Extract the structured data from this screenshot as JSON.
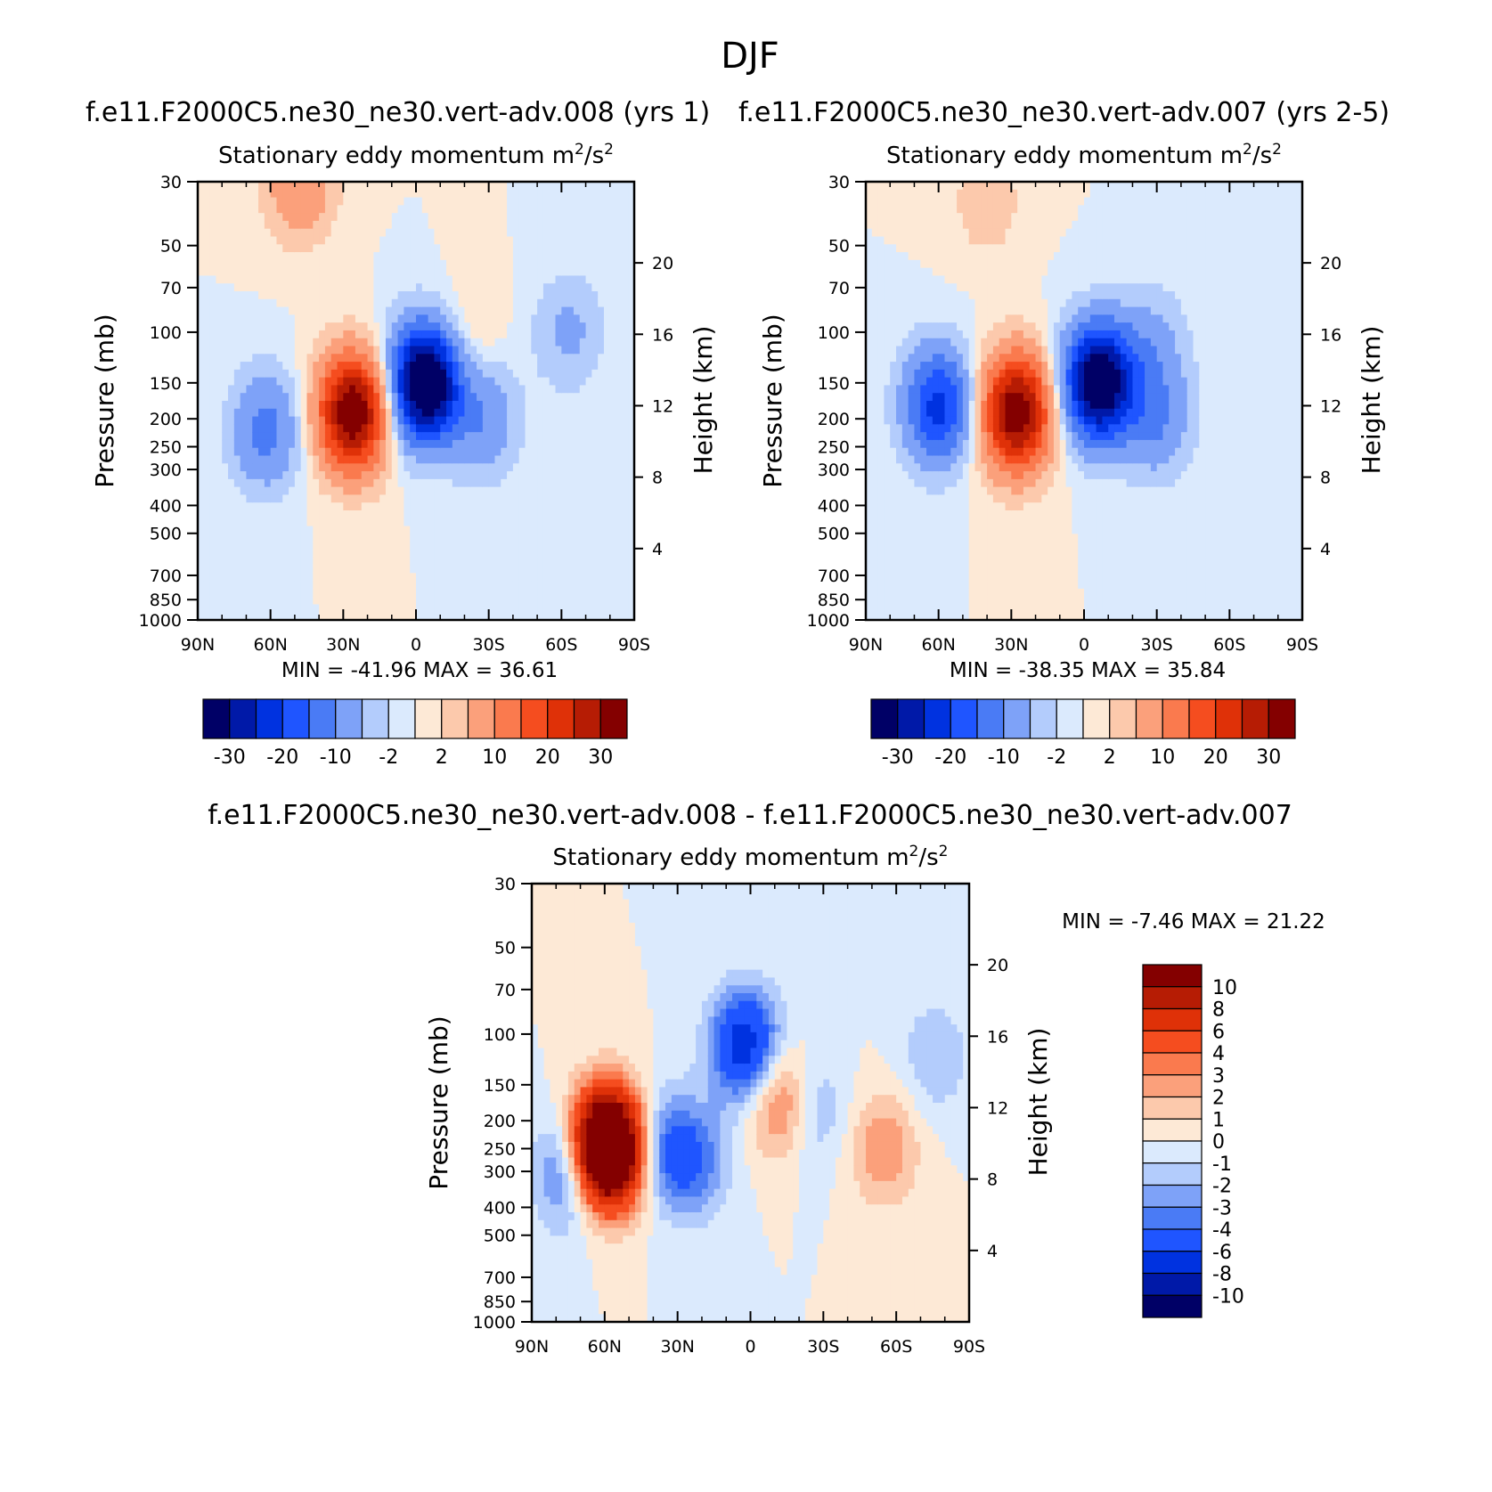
{
  "figure_title": "DJF",
  "chart_data": [
    {
      "type": "heatmap",
      "case_title": "f.e11.F2000C5.ne30_ne30.vert-adv.008 (yrs 1)",
      "title": "Stationary eddy momentum",
      "units_base": "m",
      "units_mid": "/s",
      "units_sup": "2",
      "ylabel": "Pressure (mb)",
      "y2label": "Height (km)",
      "x_ticks": [
        "90N",
        "60N",
        "30N",
        "0",
        "30S",
        "60S",
        "90S"
      ],
      "x_values": [
        90,
        60,
        30,
        0,
        -30,
        -60,
        -90
      ],
      "pressure_ticks": [
        30,
        50,
        70,
        100,
        150,
        200,
        250,
        300,
        400,
        500,
        700,
        850,
        1000
      ],
      "pressure_range": [
        30,
        1000
      ],
      "height_ticks": [
        20,
        16,
        12,
        8,
        4
      ],
      "min_text": "MIN = -41.96",
      "max_text": "MAX = 36.61",
      "min": -41.96,
      "max": 36.61,
      "levels": [
        -35,
        -30,
        -25,
        -20,
        -15,
        -10,
        -5,
        -2,
        0,
        2,
        5,
        10,
        15,
        20,
        25,
        30,
        35
      ],
      "colorbar_labels": [
        "-30",
        "-20",
        "-10",
        "-2",
        "2",
        "10",
        "20",
        "30"
      ],
      "features": [
        {
          "lat": 26,
          "p": 190,
          "value": 36.6
        },
        {
          "lat": -4,
          "p": 150,
          "value": -42
        },
        {
          "lat": 62,
          "p": 220,
          "value": -12
        },
        {
          "lat": 48,
          "p": 30,
          "value": 10
        },
        {
          "lat": -28,
          "p": 200,
          "value": -9
        },
        {
          "lat": -63,
          "p": 100,
          "value": -6
        },
        {
          "lat": -20,
          "p": 110,
          "value": 4
        }
      ]
    },
    {
      "type": "heatmap",
      "case_title": "f.e11.F2000C5.ne30_ne30.vert-adv.007 (yrs 2-5)",
      "title": "Stationary eddy momentum",
      "units_base": "m",
      "units_mid": "/s",
      "units_sup": "2",
      "ylabel": "Pressure (mb)",
      "y2label": "Height (km)",
      "x_ticks": [
        "90N",
        "60N",
        "30N",
        "0",
        "30S",
        "60S",
        "90S"
      ],
      "x_values": [
        90,
        60,
        30,
        0,
        -30,
        -60,
        -90
      ],
      "pressure_ticks": [
        30,
        50,
        70,
        100,
        150,
        200,
        250,
        300,
        400,
        500,
        700,
        850,
        1000
      ],
      "pressure_range": [
        30,
        1000
      ],
      "height_ticks": [
        20,
        16,
        12,
        8,
        4
      ],
      "min_text": "MIN = -38.35",
      "max_text": "MAX = 35.84",
      "min": -38.35,
      "max": 35.84,
      "levels": [
        -35,
        -30,
        -25,
        -20,
        -15,
        -10,
        -5,
        -2,
        0,
        2,
        5,
        10,
        15,
        20,
        25,
        30,
        35
      ],
      "colorbar_labels": [
        "-30",
        "-20",
        "-10",
        "-2",
        "2",
        "10",
        "20",
        "30"
      ],
      "features": [
        {
          "lat": 28,
          "p": 190,
          "value": 35.8
        },
        {
          "lat": -6,
          "p": 150,
          "value": -38.4
        },
        {
          "lat": 60,
          "p": 180,
          "value": -22
        },
        {
          "lat": -30,
          "p": 200,
          "value": -10
        },
        {
          "lat": -28,
          "p": 110,
          "value": -6
        },
        {
          "lat": 40,
          "p": 35,
          "value": 4
        }
      ]
    },
    {
      "type": "heatmap",
      "case_title": "f.e11.F2000C5.ne30_ne30.vert-adv.008 - f.e11.F2000C5.ne30_ne30.vert-adv.007",
      "title": "Stationary eddy momentum",
      "units_base": "m",
      "units_mid": "/s",
      "units_sup": "2",
      "ylabel": "Pressure (mb)",
      "y2label": "Height (km)",
      "x_ticks": [
        "90N",
        "60N",
        "30N",
        "0",
        "30S",
        "60S",
        "90S"
      ],
      "x_values": [
        90,
        60,
        30,
        0,
        -30,
        -60,
        -90
      ],
      "pressure_ticks": [
        30,
        50,
        70,
        100,
        150,
        200,
        250,
        300,
        400,
        500,
        700,
        850,
        1000
      ],
      "pressure_range": [
        30,
        1000
      ],
      "height_ticks": [
        20,
        16,
        12,
        8,
        4
      ],
      "min_text": "MIN = -7.46",
      "max_text": "MAX = 21.22",
      "min": -7.46,
      "max": 21.22,
      "levels": [
        -12,
        -10,
        -8,
        -6,
        -4,
        -3,
        -2,
        -1,
        0,
        1,
        2,
        3,
        4,
        6,
        8,
        10,
        12
      ],
      "colorbar_labels": [
        "10",
        "8",
        "6",
        "4",
        "3",
        "2",
        "1",
        "0",
        "-1",
        "-2",
        "-3",
        "-4",
        "-6",
        "-8",
        "-10"
      ],
      "features": [
        {
          "lat": 59,
          "p": 250,
          "value": 21.2
        },
        {
          "lat": 74,
          "p": 300,
          "value": -5
        },
        {
          "lat": 2,
          "p": 110,
          "value": -7.5
        },
        {
          "lat": -13,
          "p": 170,
          "value": 5
        },
        {
          "lat": -55,
          "p": 250,
          "value": 3
        },
        {
          "lat": 35,
          "p": 250,
          "value": -4
        },
        {
          "lat": 22,
          "p": 280,
          "value": -3
        },
        {
          "lat": -24,
          "p": 180,
          "value": -3
        },
        {
          "lat": -76,
          "p": 120,
          "value": -2
        }
      ]
    }
  ]
}
